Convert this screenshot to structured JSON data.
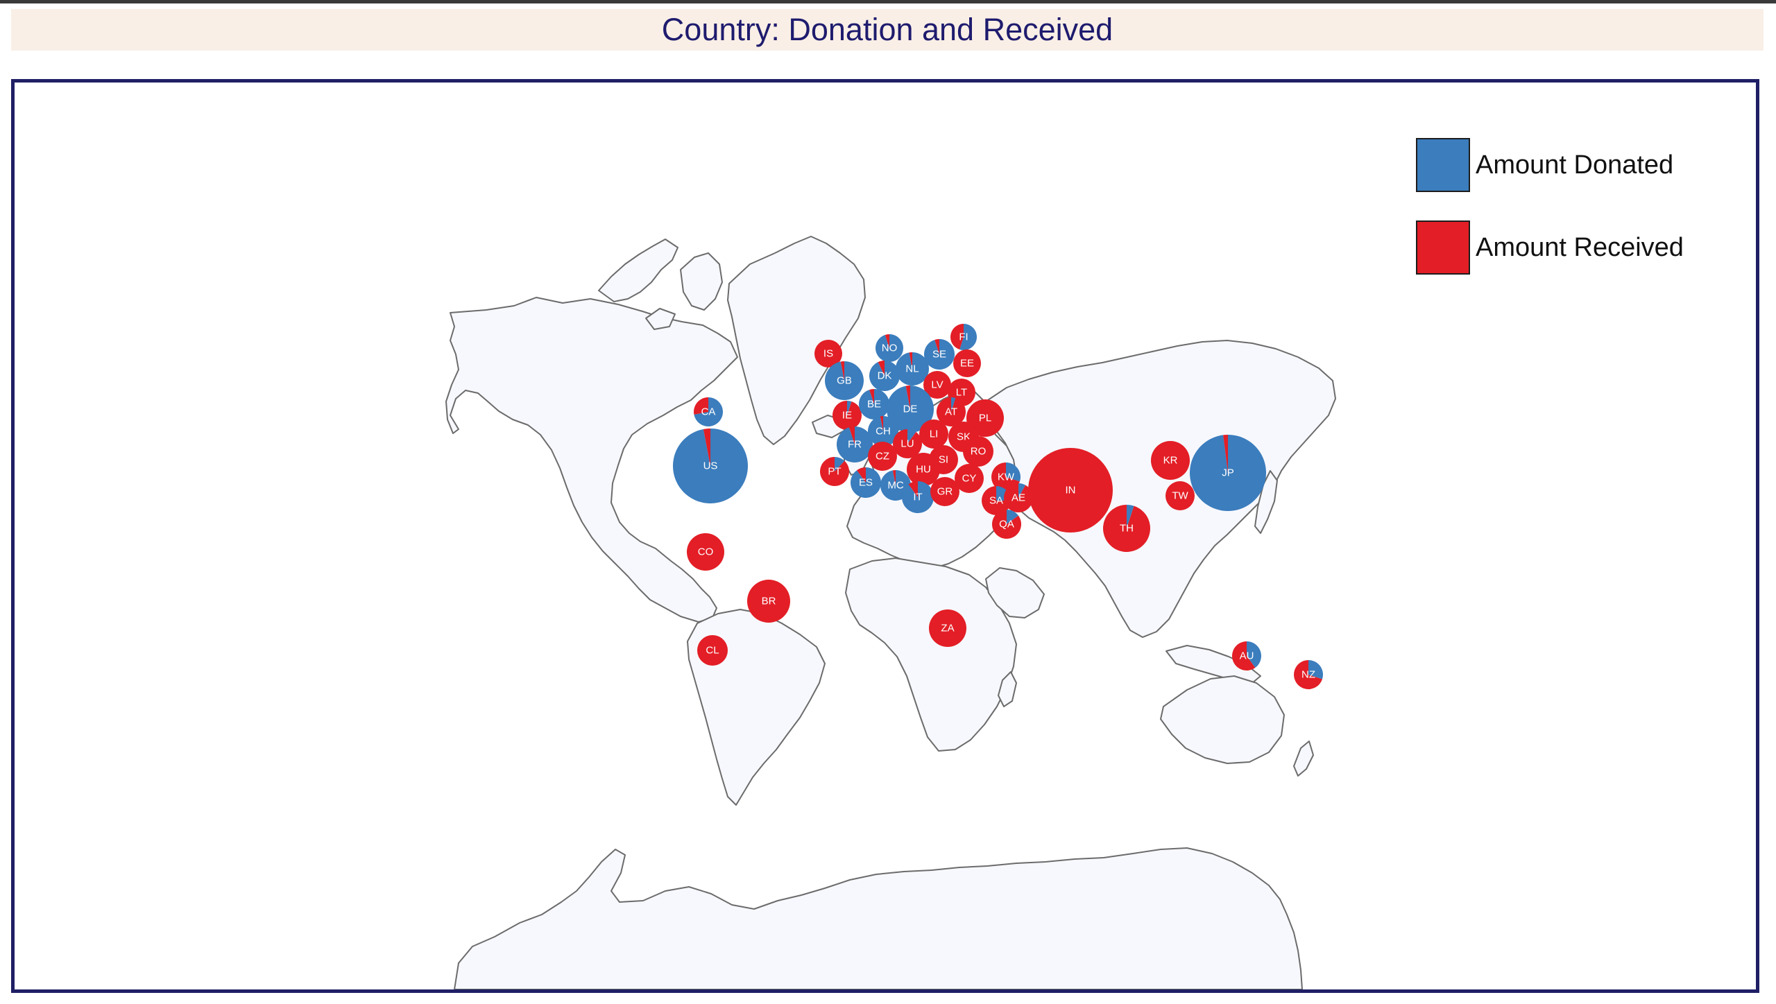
{
  "title": "Country: Donation and Received",
  "legend": {
    "donated": {
      "label": "Amount Donated",
      "color": "#3b7dbd"
    },
    "received": {
      "label": "Amount Received",
      "color": "#e31e26"
    }
  },
  "map": {
    "land_color": "#f7f8fd",
    "border_color": "#6b6b6b"
  },
  "countries": [
    {
      "code": "US",
      "donated": 0.97
    },
    {
      "code": "CA",
      "donated": 0.72
    },
    {
      "code": "CO",
      "donated": 0.0
    },
    {
      "code": "BR",
      "donated": 0.0
    },
    {
      "code": "CL",
      "donated": 0.0
    },
    {
      "code": "IS",
      "donated": 0.0
    },
    {
      "code": "NO",
      "donated": 0.95
    },
    {
      "code": "FI",
      "donated": 0.55
    },
    {
      "code": "SE",
      "donated": 0.95
    },
    {
      "code": "EE",
      "donated": 0.0
    },
    {
      "code": "GB",
      "donated": 0.97
    },
    {
      "code": "DK",
      "donated": 0.93
    },
    {
      "code": "NL",
      "donated": 0.97
    },
    {
      "code": "LV",
      "donated": 0.0
    },
    {
      "code": "LT",
      "donated": 0.0
    },
    {
      "code": "IE",
      "donated": 0.05
    },
    {
      "code": "BE",
      "donated": 0.95
    },
    {
      "code": "DE",
      "donated": 0.97
    },
    {
      "code": "AT",
      "donated": 0.05
    },
    {
      "code": "PL",
      "donated": 0.0
    },
    {
      "code": "CH",
      "donated": 0.97
    },
    {
      "code": "LI",
      "donated": 0.0
    },
    {
      "code": "SK",
      "donated": 0.0
    },
    {
      "code": "FR",
      "donated": 0.95
    },
    {
      "code": "LU",
      "donated": 0.1
    },
    {
      "code": "CZ",
      "donated": 0.0
    },
    {
      "code": "RO",
      "donated": 0.0
    },
    {
      "code": "SI",
      "donated": 0.0
    },
    {
      "code": "HU",
      "donated": 0.0
    },
    {
      "code": "PT",
      "donated": 0.12
    },
    {
      "code": "ES",
      "donated": 0.9
    },
    {
      "code": "MC",
      "donated": 0.97
    },
    {
      "code": "IT",
      "donated": 0.9
    },
    {
      "code": "GR",
      "donated": 0.0
    },
    {
      "code": "CY",
      "donated": 0.0
    },
    {
      "code": "KW",
      "donated": 0.3
    },
    {
      "code": "SA",
      "donated": 0.25
    },
    {
      "code": "AE",
      "donated": 0.08
    },
    {
      "code": "QA",
      "donated": 0.15
    },
    {
      "code": "IN",
      "donated": 0.0
    },
    {
      "code": "TH",
      "donated": 0.05
    },
    {
      "code": "KR",
      "donated": 0.0
    },
    {
      "code": "TW",
      "donated": 0.0
    },
    {
      "code": "JP",
      "donated": 0.98
    },
    {
      "code": "ZA",
      "donated": 0.0
    },
    {
      "code": "AU",
      "donated": 0.4
    },
    {
      "code": "NZ",
      "donated": 0.3
    }
  ]
}
